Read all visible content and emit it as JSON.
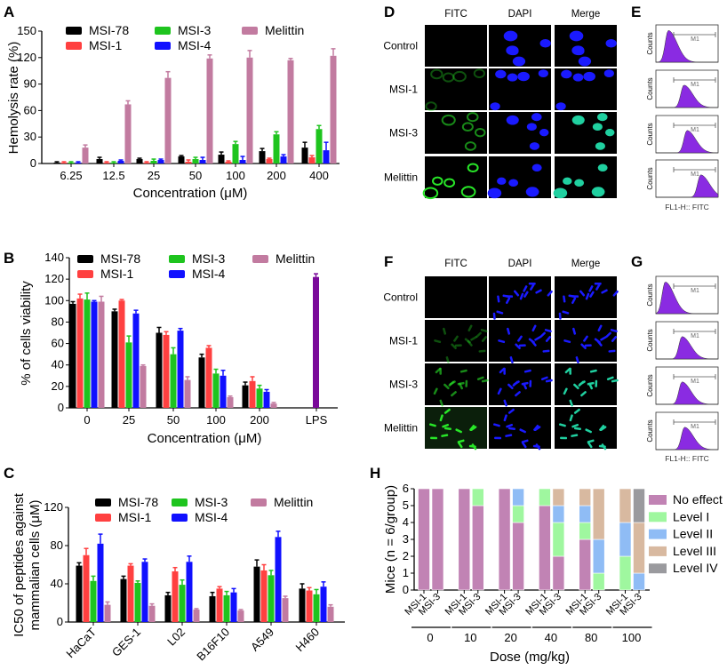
{
  "figure": {
    "panel_labels": {
      "A": "A",
      "B": "B",
      "C": "C",
      "D": "D",
      "E": "E",
      "F": "F",
      "G": "G",
      "H": "H"
    },
    "micrographs": {
      "column_headers": [
        "FITC",
        "DAPI",
        "Merge"
      ],
      "row_labels": [
        "Control",
        "MSI-1",
        "MSI-3",
        "Melittin"
      ]
    },
    "flow": {
      "ylabel": "Counts",
      "xlabel": "FL1-H:: FITC",
      "gate_label": "M1"
    },
    "colors": {
      "MSI-78": "#000000",
      "MSI-1": "#ff4040",
      "MSI-3": "#1ec41e",
      "MSI-4": "#1010ff",
      "Melittin": "#c27ba0",
      "LPS": "#7a0a9a",
      "histogram": "#8a2be2"
    }
  },
  "chart_data": [
    {
      "panel": "A",
      "type": "bar",
      "xlabel": "Concentration (μM)",
      "ylabel": "Hemolysis rate (%)",
      "ylim": [
        0,
        150
      ],
      "yticks": [
        0,
        30,
        60,
        90,
        120,
        150
      ],
      "categories": [
        "6.25",
        "12.5",
        "25",
        "50",
        "100",
        "200",
        "400"
      ],
      "legend": "top",
      "series": [
        {
          "name": "MSI-78",
          "values": [
            1,
            5,
            5,
            8,
            10,
            14,
            18
          ],
          "errors": [
            1,
            2,
            1,
            1,
            3,
            3,
            6
          ]
        },
        {
          "name": "MSI-1",
          "values": [
            1,
            1,
            1,
            2,
            2,
            5,
            7
          ],
          "errors": [
            1,
            1,
            1,
            2,
            1,
            1,
            2
          ]
        },
        {
          "name": "MSI-3",
          "values": [
            1,
            1,
            3,
            5,
            22,
            33,
            39
          ],
          "errors": [
            1,
            1,
            2,
            2,
            3,
            3,
            4
          ]
        },
        {
          "name": "MSI-4",
          "values": [
            1,
            3,
            4,
            4,
            4,
            8,
            15
          ],
          "errors": [
            1,
            1,
            1,
            3,
            4,
            2,
            9
          ]
        },
        {
          "name": "Melittin",
          "values": [
            18,
            67,
            97,
            119,
            120,
            117,
            122
          ],
          "errors": [
            3,
            4,
            7,
            4,
            8,
            2,
            8
          ]
        }
      ]
    },
    {
      "panel": "B",
      "type": "bar",
      "xlabel": "Concentration (μM)",
      "ylabel": "% of cells viability",
      "ylim": [
        0,
        140
      ],
      "yticks": [
        0,
        20,
        40,
        60,
        80,
        100,
        120,
        140
      ],
      "categories": [
        "0",
        "25",
        "50",
        "100",
        "200",
        "LPS"
      ],
      "legend": "top",
      "series": [
        {
          "name": "MSI-78",
          "values": [
            97,
            90,
            70,
            47,
            21,
            null
          ],
          "errors": [
            2,
            2,
            5,
            3,
            3,
            null
          ]
        },
        {
          "name": "MSI-1",
          "values": [
            102,
            100,
            68,
            56,
            25,
            null
          ],
          "errors": [
            4,
            1,
            3,
            2,
            4,
            null
          ]
        },
        {
          "name": "MSI-3",
          "values": [
            101,
            61,
            50,
            32,
            18,
            null
          ],
          "errors": [
            6,
            6,
            6,
            4,
            3,
            null
          ]
        },
        {
          "name": "MSI-4",
          "values": [
            99,
            88,
            72,
            30,
            15,
            null
          ],
          "errors": [
            1,
            3,
            2,
            5,
            2,
            null
          ]
        },
        {
          "name": "Melittin",
          "values": [
            99,
            39,
            26,
            10,
            4,
            null
          ],
          "errors": [
            5,
            1,
            3,
            1,
            1,
            null
          ]
        }
      ],
      "lps_bar": {
        "category": "LPS",
        "value": 122,
        "error": 3
      }
    },
    {
      "panel": "C",
      "type": "bar",
      "xlabel": "",
      "ylabel_line1": "IC50 of peptides against",
      "ylabel_line2": "mammalian cells (μM)",
      "ylim": [
        0,
        120
      ],
      "yticks": [
        0,
        40,
        80,
        120
      ],
      "categories": [
        "HaCaT",
        "GES-1",
        "L02",
        "B16F10",
        "A549",
        "H460"
      ],
      "legend": "top",
      "series": [
        {
          "name": "MSI-78",
          "values": [
            59,
            45,
            28,
            27,
            58,
            35
          ],
          "errors": [
            3,
            3,
            3,
            4,
            7,
            5
          ]
        },
        {
          "name": "MSI-1",
          "values": [
            70,
            59,
            53,
            35,
            54,
            33
          ],
          "errors": [
            7,
            2,
            4,
            2,
            6,
            3
          ]
        },
        {
          "name": "MSI-3",
          "values": [
            43,
            41,
            39,
            28,
            49,
            29
          ],
          "errors": [
            5,
            2,
            5,
            4,
            5,
            5
          ]
        },
        {
          "name": "MSI-4",
          "values": [
            82,
            63,
            63,
            31,
            89,
            37
          ],
          "errors": [
            10,
            3,
            6,
            4,
            6,
            5
          ]
        },
        {
          "name": "Melittin",
          "values": [
            18,
            17,
            13,
            12,
            25,
            16
          ],
          "errors": [
            3,
            2,
            1,
            1,
            2,
            2
          ]
        }
      ]
    },
    {
      "panel": "H",
      "type": "bar",
      "stacked": true,
      "xlabel": "Dose (mg/kg)",
      "ylabel": "Mice (n = 6/group)",
      "ylim": [
        0,
        6
      ],
      "yticks": [
        0,
        1,
        2,
        3,
        4,
        5,
        6
      ],
      "doses": [
        "0",
        "10",
        "20",
        "40",
        "80",
        "100"
      ],
      "peptides": [
        "MSI-1",
        "MSI-3"
      ],
      "legend": "right",
      "levels": [
        {
          "name": "No effect",
          "color": "#c183b4"
        },
        {
          "name": "Level I",
          "color": "#9ff79f"
        },
        {
          "name": "Level II",
          "color": "#8fbcf5"
        },
        {
          "name": "Level III",
          "color": "#d8b9a0"
        },
        {
          "name": "Level IV",
          "color": "#9a9a9e"
        }
      ],
      "counts": [
        [
          [
            6,
            0,
            0,
            0,
            0
          ],
          [
            6,
            0,
            0,
            0,
            0
          ]
        ],
        [
          [
            6,
            0,
            0,
            0,
            0
          ],
          [
            5,
            1,
            0,
            0,
            0
          ]
        ],
        [
          [
            6,
            0,
            0,
            0,
            0
          ],
          [
            4,
            1,
            1,
            0,
            0
          ]
        ],
        [
          [
            5,
            1,
            0,
            0,
            0
          ],
          [
            2,
            2,
            1,
            1,
            0
          ]
        ],
        [
          [
            3,
            1,
            1,
            1,
            0
          ],
          [
            0,
            1,
            2,
            3,
            0
          ]
        ],
        [
          [
            0,
            2,
            2,
            2,
            0
          ],
          [
            0,
            0,
            1,
            3,
            2
          ]
        ]
      ]
    }
  ]
}
